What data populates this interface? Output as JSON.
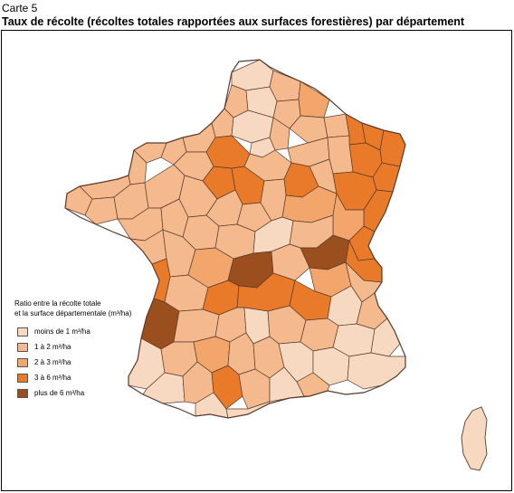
{
  "caption": "Carte 5",
  "title": "Taux de récolte (récoltes totales rapportées aux surfaces forestières) par département",
  "legend": {
    "title_line1": "Ratio entre la récolte totale",
    "title_line2": "et la surface départementale (m³/ha)",
    "items": [
      {
        "label": "moins de 1 m³/ha",
        "color": "#f7d9c2"
      },
      {
        "label": "1 à 2 m³/ha",
        "color": "#f4b98c"
      },
      {
        "label": "2 à 3 m³/ha",
        "color": "#f2a66c"
      },
      {
        "label": "3 à 6 m³/ha",
        "color": "#e97a29"
      },
      {
        "label": "plus de 6 m³/ha",
        "color": "#9b4f1e"
      }
    ]
  },
  "map": {
    "border_color": "#5a3a2a",
    "region_classes": [
      1,
      2,
      3,
      4,
      5
    ]
  }
}
